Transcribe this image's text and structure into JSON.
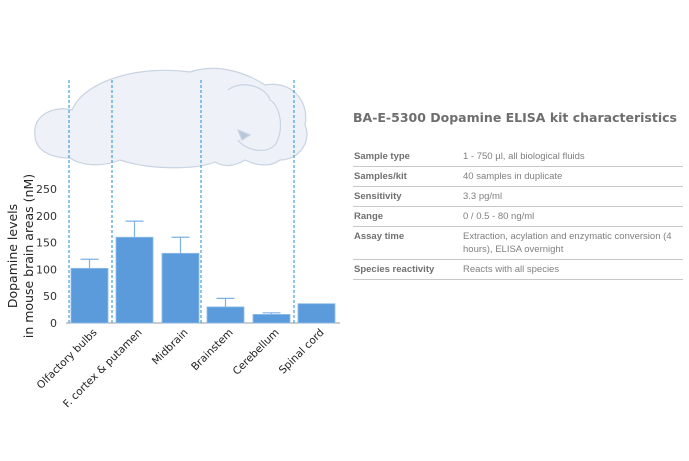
{
  "table": {
    "title": "BA-E-5300 Dopamine ELISA kit characteristics",
    "rows": [
      {
        "label": "Sample type",
        "value": "1 - 750 µl, all biological fluids"
      },
      {
        "label": "Samples/kit",
        "value": "40 samples in duplicate"
      },
      {
        "label": "Sensitivity",
        "value": "3.3 pg/ml"
      },
      {
        "label": "Range",
        "value": "0 / 0.5 - 80 ng/ml"
      },
      {
        "label": "Assay time",
        "value": "Extraction, acylation and enzymatic conversion (4 hours), ELISA overnight"
      },
      {
        "label": "Species reactivity",
        "value": "Reacts with all species"
      }
    ]
  },
  "chart_data": {
    "type": "bar",
    "ylabel_line1": "Dopamine levels",
    "ylabel_line2": "in mouse brain areas (nM)",
    "ylim": [
      0,
      250
    ],
    "yticks": [
      "0",
      "50",
      "100",
      "150",
      "200",
      "250"
    ],
    "categories": [
      "Olfactory bulbs",
      "F. cortex & putamen",
      "Midbrain",
      "Brainstem",
      "Cerebellum",
      "Spinal cord"
    ],
    "values": [
      102,
      160,
      130,
      30,
      16,
      36
    ],
    "error_upper": [
      119,
      190,
      160,
      46,
      19,
      null
    ],
    "bar_color": "#5b9bdc",
    "divider_color": "#1f8fcf",
    "grid": false
  }
}
